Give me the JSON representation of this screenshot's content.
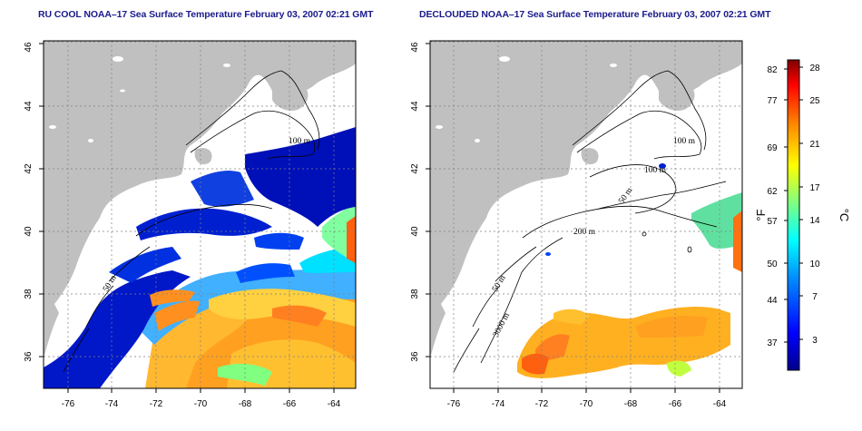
{
  "left_panel": {
    "title": "RU COOL NOAA–17 Sea Surface Temperature February 03, 2007 02:21 GMT",
    "x_ticks": [
      "-76",
      "-74",
      "-72",
      "-70",
      "-68",
      "-66",
      "-64"
    ],
    "y_ticks": [
      "36",
      "38",
      "40",
      "42",
      "44",
      "46"
    ],
    "contour_labels": [
      "100 m",
      "50 m"
    ]
  },
  "right_panel": {
    "title": "DECLOUDED NOAA–17 Sea Surface Temperature February 03, 2007 02:21 GMT",
    "x_ticks": [
      "-76",
      "-74",
      "-72",
      "-70",
      "-68",
      "-66",
      "-64"
    ],
    "y_ticks": [
      "36",
      "38",
      "40",
      "42",
      "44",
      "46"
    ],
    "contour_labels": [
      "100 m",
      "100 m",
      "50 m",
      "200 m",
      "50 m",
      "3000 m"
    ]
  },
  "colorbar": {
    "fahrenheit_unit": "°F",
    "celsius_unit": "°C",
    "fahrenheit_ticks": [
      "82",
      "77",
      "69",
      "62",
      "57",
      "50",
      "44",
      "37"
    ],
    "celsius_ticks": [
      "28",
      "25",
      "21",
      "17",
      "14",
      "10",
      "7",
      "3"
    ],
    "range_celsius": [
      0,
      29
    ],
    "colors": [
      "#000090",
      "#0000ff",
      "#0080ff",
      "#00ffff",
      "#80ff80",
      "#ffff00",
      "#ff8000",
      "#ff0000",
      "#800000"
    ]
  },
  "colors": {
    "land": "#c0c0c0",
    "cloud": "#ffffff",
    "title": "#1a1a8c"
  }
}
